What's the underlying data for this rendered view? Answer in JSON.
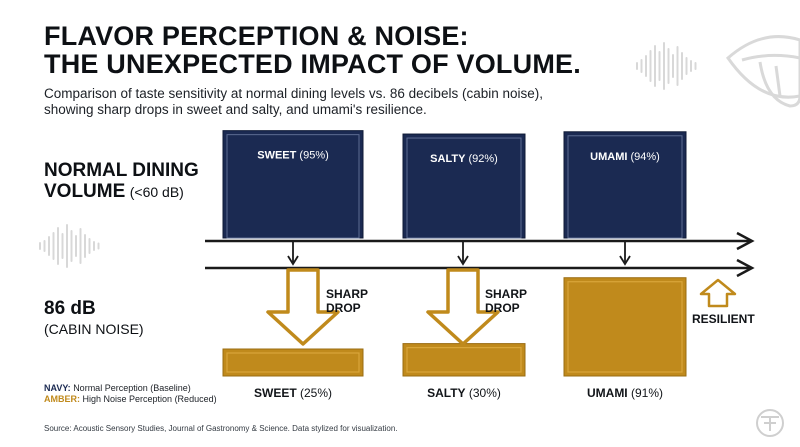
{
  "title_line1": "FLAVOR PERCEPTION & NOISE:",
  "title_line2": "THE UNEXPECTED IMPACT OF VOLUME.",
  "subtitle": "Comparison of taste sensitivity at normal dining levels vs. 86 decibels (cabin noise), showing sharp drops in sweet and salty, and umami's resilience.",
  "rows": {
    "normal_line1": "NORMAL DINING",
    "normal_line2": "VOLUME",
    "normal_suffix": "(<60 dB)",
    "noise_line1": "86 dB",
    "noise_line2": "(CABIN NOISE)"
  },
  "annotations": {
    "sharp_drop_1": "SHARP",
    "sharp_drop_2": "DROP",
    "resilient": "RESILIENT"
  },
  "legend": {
    "navy_key": "NAVY:",
    "navy_text": "Normal Perception (Baseline)",
    "amber_key": "AMBER:",
    "amber_text": "High Noise Perception (Reduced)"
  },
  "source": "Source: Acoustic Sensory Studies, Journal of Gastronomy & Science. Data stylized for visualization.",
  "colors": {
    "navy": "#1b2a52",
    "navy_dark": "#0f1a36",
    "amber": "#c08a1c",
    "amber_light": "#d9a63a",
    "arrow": "#1a1a1a",
    "sound_wave": "#d8d8d8"
  },
  "icons": [
    "sound-wave-icon",
    "mouth-tongue-icon",
    "down-arrow-icon",
    "up-arrow-icon",
    "brand-logo-icon"
  ],
  "chart_data": {
    "type": "bar",
    "categories": [
      "SWEET",
      "SALTY",
      "UMAMI"
    ],
    "series": [
      {
        "name": "NAVY",
        "values": [
          95,
          92,
          94
        ]
      },
      {
        "name": "AMBER",
        "values": [
          25,
          30,
          91
        ]
      }
    ],
    "normal_labels": [
      "SWEET",
      "SALTY",
      "UMAMI"
    ],
    "normal_values": [
      "(95%)",
      "(92%)",
      "(94%)"
    ],
    "noise_labels": [
      "SWEET",
      "SALTY",
      "UMAMI"
    ],
    "noise_values": [
      "(25%)",
      "(30%)",
      "(91%)"
    ],
    "ylim": [
      0,
      100
    ]
  }
}
